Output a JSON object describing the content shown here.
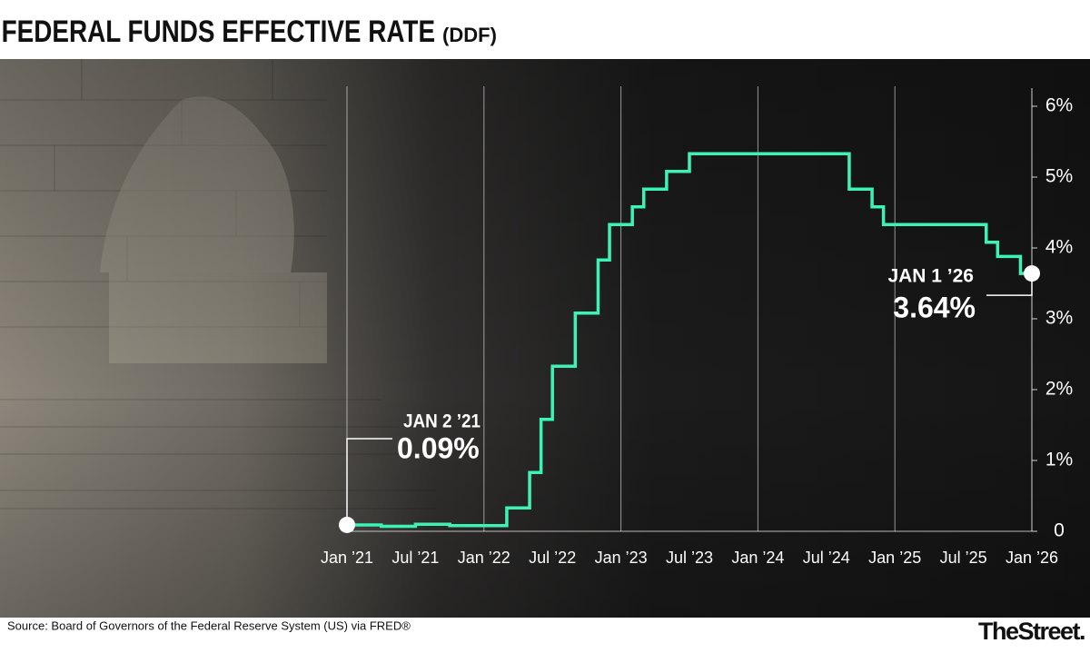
{
  "chart_data": {
    "type": "line",
    "step": "post",
    "title": "FEDERAL FUNDS EFFECTIVE RATE",
    "subtitle": "(DDF)",
    "source": "Source: Board of Governors of the Federal Reserve System (US) via FRED®",
    "brand": "TheStreet.",
    "x": [
      "2021-01",
      "2021-04",
      "2021-07",
      "2021-10",
      "2022-03",
      "2022-05",
      "2022-06",
      "2022-07",
      "2022-09",
      "2022-11",
      "2022-12",
      "2023-02",
      "2023-03",
      "2023-05",
      "2023-07",
      "2024-09",
      "2024-11",
      "2024-12",
      "2025-09",
      "2025-10",
      "2025-12",
      "2026-01"
    ],
    "series": [
      {
        "color": "#3df2b5",
        "values": [
          0.09,
          0.07,
          0.1,
          0.08,
          0.33,
          0.83,
          1.58,
          2.33,
          3.08,
          3.83,
          4.33,
          4.58,
          4.83,
          5.08,
          5.33,
          4.83,
          4.58,
          4.33,
          4.08,
          3.88,
          3.64,
          3.64
        ]
      }
    ],
    "annotations": [
      {
        "date": "JAN 2 ’21",
        "text": "0.09%"
      },
      {
        "date": "JAN 1 ’26",
        "text": "3.64%"
      }
    ],
    "xlim": [
      "2021-01",
      "2026-01"
    ],
    "xticks": [
      {
        "value": "2021-01",
        "label": "Jan ’21"
      },
      {
        "value": "2021-07",
        "label": "Jul ’21"
      },
      {
        "value": "2022-01",
        "label": "Jan ’22"
      },
      {
        "value": "2022-07",
        "label": "Jul ’22"
      },
      {
        "value": "2023-01",
        "label": "Jan ’23"
      },
      {
        "value": "2023-07",
        "label": "Jul ’23"
      },
      {
        "value": "2024-01",
        "label": "Jan ’24"
      },
      {
        "value": "2024-07",
        "label": "Jul ’24"
      },
      {
        "value": "2025-01",
        "label": "Jan ’25"
      },
      {
        "value": "2025-07",
        "label": "Jul ’25"
      },
      {
        "value": "2026-01",
        "label": "Jan ’26"
      }
    ],
    "ylim": [
      0,
      6
    ],
    "yticks": [
      0,
      {
        "value": 1,
        "label": "1%"
      },
      {
        "value": 2,
        "label": "2%"
      },
      {
        "value": 3,
        "label": "3%"
      },
      {
        "value": 4,
        "label": "4%"
      },
      {
        "value": 5,
        "label": "5%"
      },
      {
        "value": 6,
        "label": "6%"
      }
    ],
    "grid": true
  }
}
